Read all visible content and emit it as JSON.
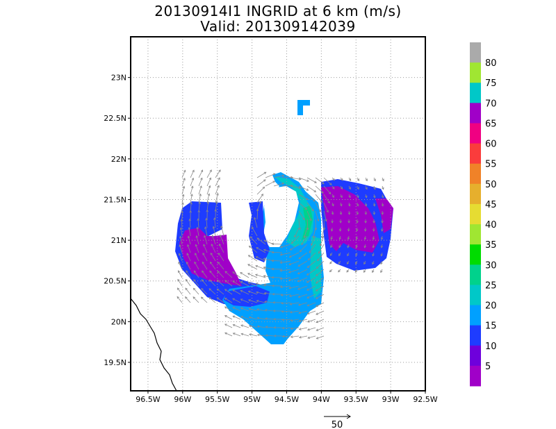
{
  "title": {
    "line1": "20130914I1 INGRID at 6 km (m/s)",
    "line2": "Valid: 201309142039"
  },
  "chart_data": {
    "type": "heatmap",
    "title": "20130914I1 INGRID at 6 km (m/s)",
    "subtitle": "Valid: 201309142039",
    "xlim": [
      -96.75,
      -92.5
    ],
    "ylim": [
      19.15,
      23.5
    ],
    "x_ticks": [
      -96.5,
      -96,
      -95.5,
      -95,
      -94.5,
      -94,
      -93.5,
      -93,
      -92.5
    ],
    "x_tick_labels": [
      "96.5W",
      "96W",
      "95.5W",
      "95W",
      "94.5W",
      "94W",
      "93.5W",
      "93W",
      "92.5W"
    ],
    "y_ticks": [
      19.5,
      20,
      20.5,
      21,
      21.5,
      22,
      22.5,
      23
    ],
    "y_tick_labels": [
      "19.5N",
      "20N",
      "20.5N",
      "21N",
      "21.5N",
      "22N",
      "22.5N",
      "23N"
    ],
    "grid": true,
    "colorbar": {
      "placement": "right",
      "labels": [
        "5",
        "10",
        "15",
        "20",
        "25",
        "30",
        "35",
        "40",
        "45",
        "50",
        "55",
        "60",
        "65",
        "70",
        "75",
        "80"
      ],
      "colors": [
        "#a000c8",
        "#6e00dc",
        "#1e3cff",
        "#00a0ff",
        "#00c8c8",
        "#00d28c",
        "#00dc00",
        "#a0e632",
        "#e6dc32",
        "#e6af2d",
        "#f08228",
        "#fa3c3c",
        "#f00082",
        "#a000c8",
        "#00c8c8",
        "#a0e632",
        "#aaaaaa"
      ]
    },
    "reference_vector": {
      "label": "50",
      "value": 50
    }
  },
  "colors": {
    "c5": "#a000c8",
    "c10": "#1e3cff",
    "c15": "#00a0ff",
    "c20": "#00c8c8",
    "c25": "#00d28c",
    "grid": "#999999",
    "arrow": "#888888",
    "coast": "#000000"
  }
}
